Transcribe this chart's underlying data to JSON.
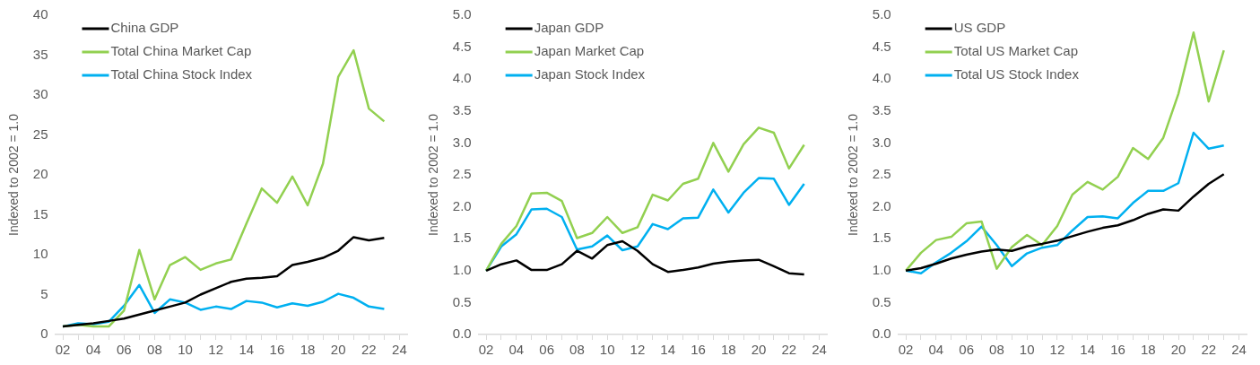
{
  "chart_data": [
    {
      "type": "line",
      "ylabel": "Indexed to 2002 = 1.0",
      "legend": "top left",
      "grid": false,
      "marker": "none",
      "line_style": "solid",
      "x": [
        2002,
        2003,
        2004,
        2005,
        2006,
        2007,
        2008,
        2009,
        2010,
        2011,
        2012,
        2013,
        2014,
        2015,
        2016,
        2017,
        2018,
        2019,
        2020,
        2021,
        2022,
        2023
      ],
      "xlim": [
        2001.5,
        2024.5
      ],
      "xticks": [
        {
          "value": 2002,
          "label": "02"
        },
        {
          "value": 2003,
          "label": null
        },
        {
          "value": 2004,
          "label": "04"
        },
        {
          "value": 2005,
          "label": null
        },
        {
          "value": 2006,
          "label": "06"
        },
        {
          "value": 2007,
          "label": null
        },
        {
          "value": 2008,
          "label": "08"
        },
        {
          "value": 2009,
          "label": null
        },
        {
          "value": 2010,
          "label": "10"
        },
        {
          "value": 2011,
          "label": null
        },
        {
          "value": 2012,
          "label": "12"
        },
        {
          "value": 2013,
          "label": null
        },
        {
          "value": 2014,
          "label": "14"
        },
        {
          "value": 2015,
          "label": null
        },
        {
          "value": 2016,
          "label": "16"
        },
        {
          "value": 2017,
          "label": null
        },
        {
          "value": 2018,
          "label": "18"
        },
        {
          "value": 2019,
          "label": null
        },
        {
          "value": 2020,
          "label": "20"
        },
        {
          "value": 2021,
          "label": null
        },
        {
          "value": 2022,
          "label": "22"
        },
        {
          "value": 2023,
          "label": null
        },
        {
          "value": 2024,
          "label": "24"
        }
      ],
      "ylim": [
        0,
        40
      ],
      "yticks": [
        0,
        5,
        10,
        15,
        20,
        25,
        30,
        35,
        40
      ],
      "series": [
        {
          "name": "China GDP",
          "color": "#000000",
          "values": [
            1.0,
            1.2,
            1.4,
            1.7,
            2.0,
            2.5,
            3.0,
            3.5,
            4.0,
            5.0,
            5.8,
            6.6,
            7.0,
            7.1,
            7.3,
            8.7,
            9.1,
            9.6,
            10.5,
            12.2,
            11.8,
            12.1
          ]
        },
        {
          "name": "Total China Market Cap",
          "color": "#92d050",
          "values": [
            1.0,
            1.2,
            1.0,
            1.0,
            3.0,
            10.6,
            4.4,
            8.7,
            9.7,
            8.1,
            8.9,
            9.4,
            13.9,
            18.3,
            16.5,
            19.8,
            16.2,
            21.4,
            32.3,
            35.6,
            28.3,
            26.7
          ]
        },
        {
          "name": "Total China Stock Index",
          "color": "#00b0f0",
          "values": [
            1.0,
            1.4,
            1.3,
            1.6,
            3.6,
            6.2,
            2.7,
            4.4,
            4.0,
            3.1,
            3.5,
            3.2,
            4.2,
            4.0,
            3.4,
            3.9,
            3.6,
            4.1,
            5.1,
            4.6,
            3.5,
            3.2
          ]
        }
      ]
    },
    {
      "type": "line",
      "ylabel": "Indexed to 2002 = 1.0",
      "legend": "top left",
      "grid": false,
      "marker": "none",
      "line_style": "solid",
      "x": [
        2002,
        2003,
        2004,
        2005,
        2006,
        2007,
        2008,
        2009,
        2010,
        2011,
        2012,
        2013,
        2014,
        2015,
        2016,
        2017,
        2018,
        2019,
        2020,
        2021,
        2022,
        2023
      ],
      "xlim": [
        2001.5,
        2024.5
      ],
      "xticks": [
        {
          "value": 2002,
          "label": "02"
        },
        {
          "value": 2003,
          "label": null
        },
        {
          "value": 2004,
          "label": "04"
        },
        {
          "value": 2005,
          "label": null
        },
        {
          "value": 2006,
          "label": "06"
        },
        {
          "value": 2007,
          "label": null
        },
        {
          "value": 2008,
          "label": "08"
        },
        {
          "value": 2009,
          "label": null
        },
        {
          "value": 2010,
          "label": "10"
        },
        {
          "value": 2011,
          "label": null
        },
        {
          "value": 2012,
          "label": "12"
        },
        {
          "value": 2013,
          "label": null
        },
        {
          "value": 2014,
          "label": "14"
        },
        {
          "value": 2015,
          "label": null
        },
        {
          "value": 2016,
          "label": "16"
        },
        {
          "value": 2017,
          "label": null
        },
        {
          "value": 2018,
          "label": "18"
        },
        {
          "value": 2019,
          "label": null
        },
        {
          "value": 2020,
          "label": "20"
        },
        {
          "value": 2021,
          "label": null
        },
        {
          "value": 2022,
          "label": "22"
        },
        {
          "value": 2023,
          "label": null
        },
        {
          "value": 2024,
          "label": "24"
        }
      ],
      "ylim": [
        0,
        5
      ],
      "yticks": [
        {
          "value": 0,
          "label": "0.0"
        },
        0.5,
        {
          "value": 1,
          "label": "1.0"
        },
        1.5,
        {
          "value": 2,
          "label": "2.0"
        },
        2.5,
        {
          "value": 3,
          "label": "3.0"
        },
        3.5,
        {
          "value": 4,
          "label": "4.0"
        },
        4.5,
        {
          "value": 5,
          "label": "5.0"
        }
      ],
      "series": [
        {
          "name": "Japan GDP",
          "color": "#000000",
          "values": [
            1.0,
            1.1,
            1.16,
            1.01,
            1.01,
            1.1,
            1.31,
            1.19,
            1.4,
            1.46,
            1.31,
            1.1,
            0.98,
            1.01,
            1.05,
            1.11,
            1.14,
            1.16,
            1.17,
            1.07,
            0.96,
            0.94
          ]
        },
        {
          "name": "Japan Market Cap",
          "color": "#92d050",
          "values": [
            1.0,
            1.42,
            1.7,
            2.21,
            2.22,
            2.09,
            1.51,
            1.59,
            1.84,
            1.59,
            1.68,
            2.19,
            2.1,
            2.36,
            2.44,
            3.0,
            2.55,
            2.98,
            3.24,
            3.16,
            2.6,
            2.97
          ]
        },
        {
          "name": "Japan Stock Index",
          "color": "#00b0f0",
          "values": [
            1.0,
            1.38,
            1.57,
            1.96,
            1.97,
            1.84,
            1.33,
            1.38,
            1.55,
            1.32,
            1.38,
            1.73,
            1.65,
            1.82,
            1.83,
            2.27,
            1.91,
            2.22,
            2.45,
            2.44,
            2.03,
            2.36
          ]
        }
      ]
    },
    {
      "type": "line",
      "ylabel": "Indexed to 2002 = 1.0",
      "legend": "top left",
      "grid": false,
      "marker": "none",
      "line_style": "solid",
      "x": [
        2002,
        2003,
        2004,
        2005,
        2006,
        2007,
        2008,
        2009,
        2010,
        2011,
        2012,
        2013,
        2014,
        2015,
        2016,
        2017,
        2018,
        2019,
        2020,
        2021,
        2022,
        2023
      ],
      "xlim": [
        2001.5,
        2024.5
      ],
      "xticks": [
        {
          "value": 2002,
          "label": "02"
        },
        {
          "value": 2003,
          "label": null
        },
        {
          "value": 2004,
          "label": "04"
        },
        {
          "value": 2005,
          "label": null
        },
        {
          "value": 2006,
          "label": "06"
        },
        {
          "value": 2007,
          "label": null
        },
        {
          "value": 2008,
          "label": "08"
        },
        {
          "value": 2009,
          "label": null
        },
        {
          "value": 2010,
          "label": "10"
        },
        {
          "value": 2011,
          "label": null
        },
        {
          "value": 2012,
          "label": "12"
        },
        {
          "value": 2013,
          "label": null
        },
        {
          "value": 2014,
          "label": "14"
        },
        {
          "value": 2015,
          "label": null
        },
        {
          "value": 2016,
          "label": "16"
        },
        {
          "value": 2017,
          "label": null
        },
        {
          "value": 2018,
          "label": "18"
        },
        {
          "value": 2019,
          "label": null
        },
        {
          "value": 2020,
          "label": "20"
        },
        {
          "value": 2021,
          "label": null
        },
        {
          "value": 2022,
          "label": "22"
        },
        {
          "value": 2023,
          "label": null
        },
        {
          "value": 2024,
          "label": "24"
        }
      ],
      "ylim": [
        0,
        5
      ],
      "yticks": [
        {
          "value": 0,
          "label": "0.0"
        },
        0.5,
        {
          "value": 1,
          "label": "1.0"
        },
        1.5,
        {
          "value": 2,
          "label": "2.0"
        },
        2.5,
        {
          "value": 3,
          "label": "3.0"
        },
        3.5,
        {
          "value": 4,
          "label": "4.0"
        },
        4.5,
        {
          "value": 5,
          "label": "5.0"
        }
      ],
      "series": [
        {
          "name": "US GDP",
          "color": "#000000",
          "values": [
            1.0,
            1.04,
            1.11,
            1.19,
            1.25,
            1.3,
            1.33,
            1.31,
            1.38,
            1.42,
            1.47,
            1.54,
            1.61,
            1.67,
            1.71,
            1.79,
            1.89,
            1.96,
            1.94,
            2.16,
            2.36,
            2.51
          ]
        },
        {
          "name": "Total US Market Cap",
          "color": "#92d050",
          "values": [
            1.0,
            1.28,
            1.48,
            1.53,
            1.74,
            1.77,
            1.03,
            1.37,
            1.56,
            1.4,
            1.7,
            2.19,
            2.39,
            2.27,
            2.47,
            2.92,
            2.75,
            3.08,
            3.77,
            4.73,
            3.65,
            4.45
          ]
        },
        {
          "name": "Total US Stock Index",
          "color": "#00b0f0",
          "values": [
            1.0,
            0.96,
            1.13,
            1.28,
            1.46,
            1.69,
            1.4,
            1.07,
            1.27,
            1.36,
            1.4,
            1.63,
            1.84,
            1.85,
            1.82,
            2.06,
            2.25,
            2.25,
            2.37,
            3.16,
            2.91,
            2.96
          ]
        }
      ]
    }
  ]
}
